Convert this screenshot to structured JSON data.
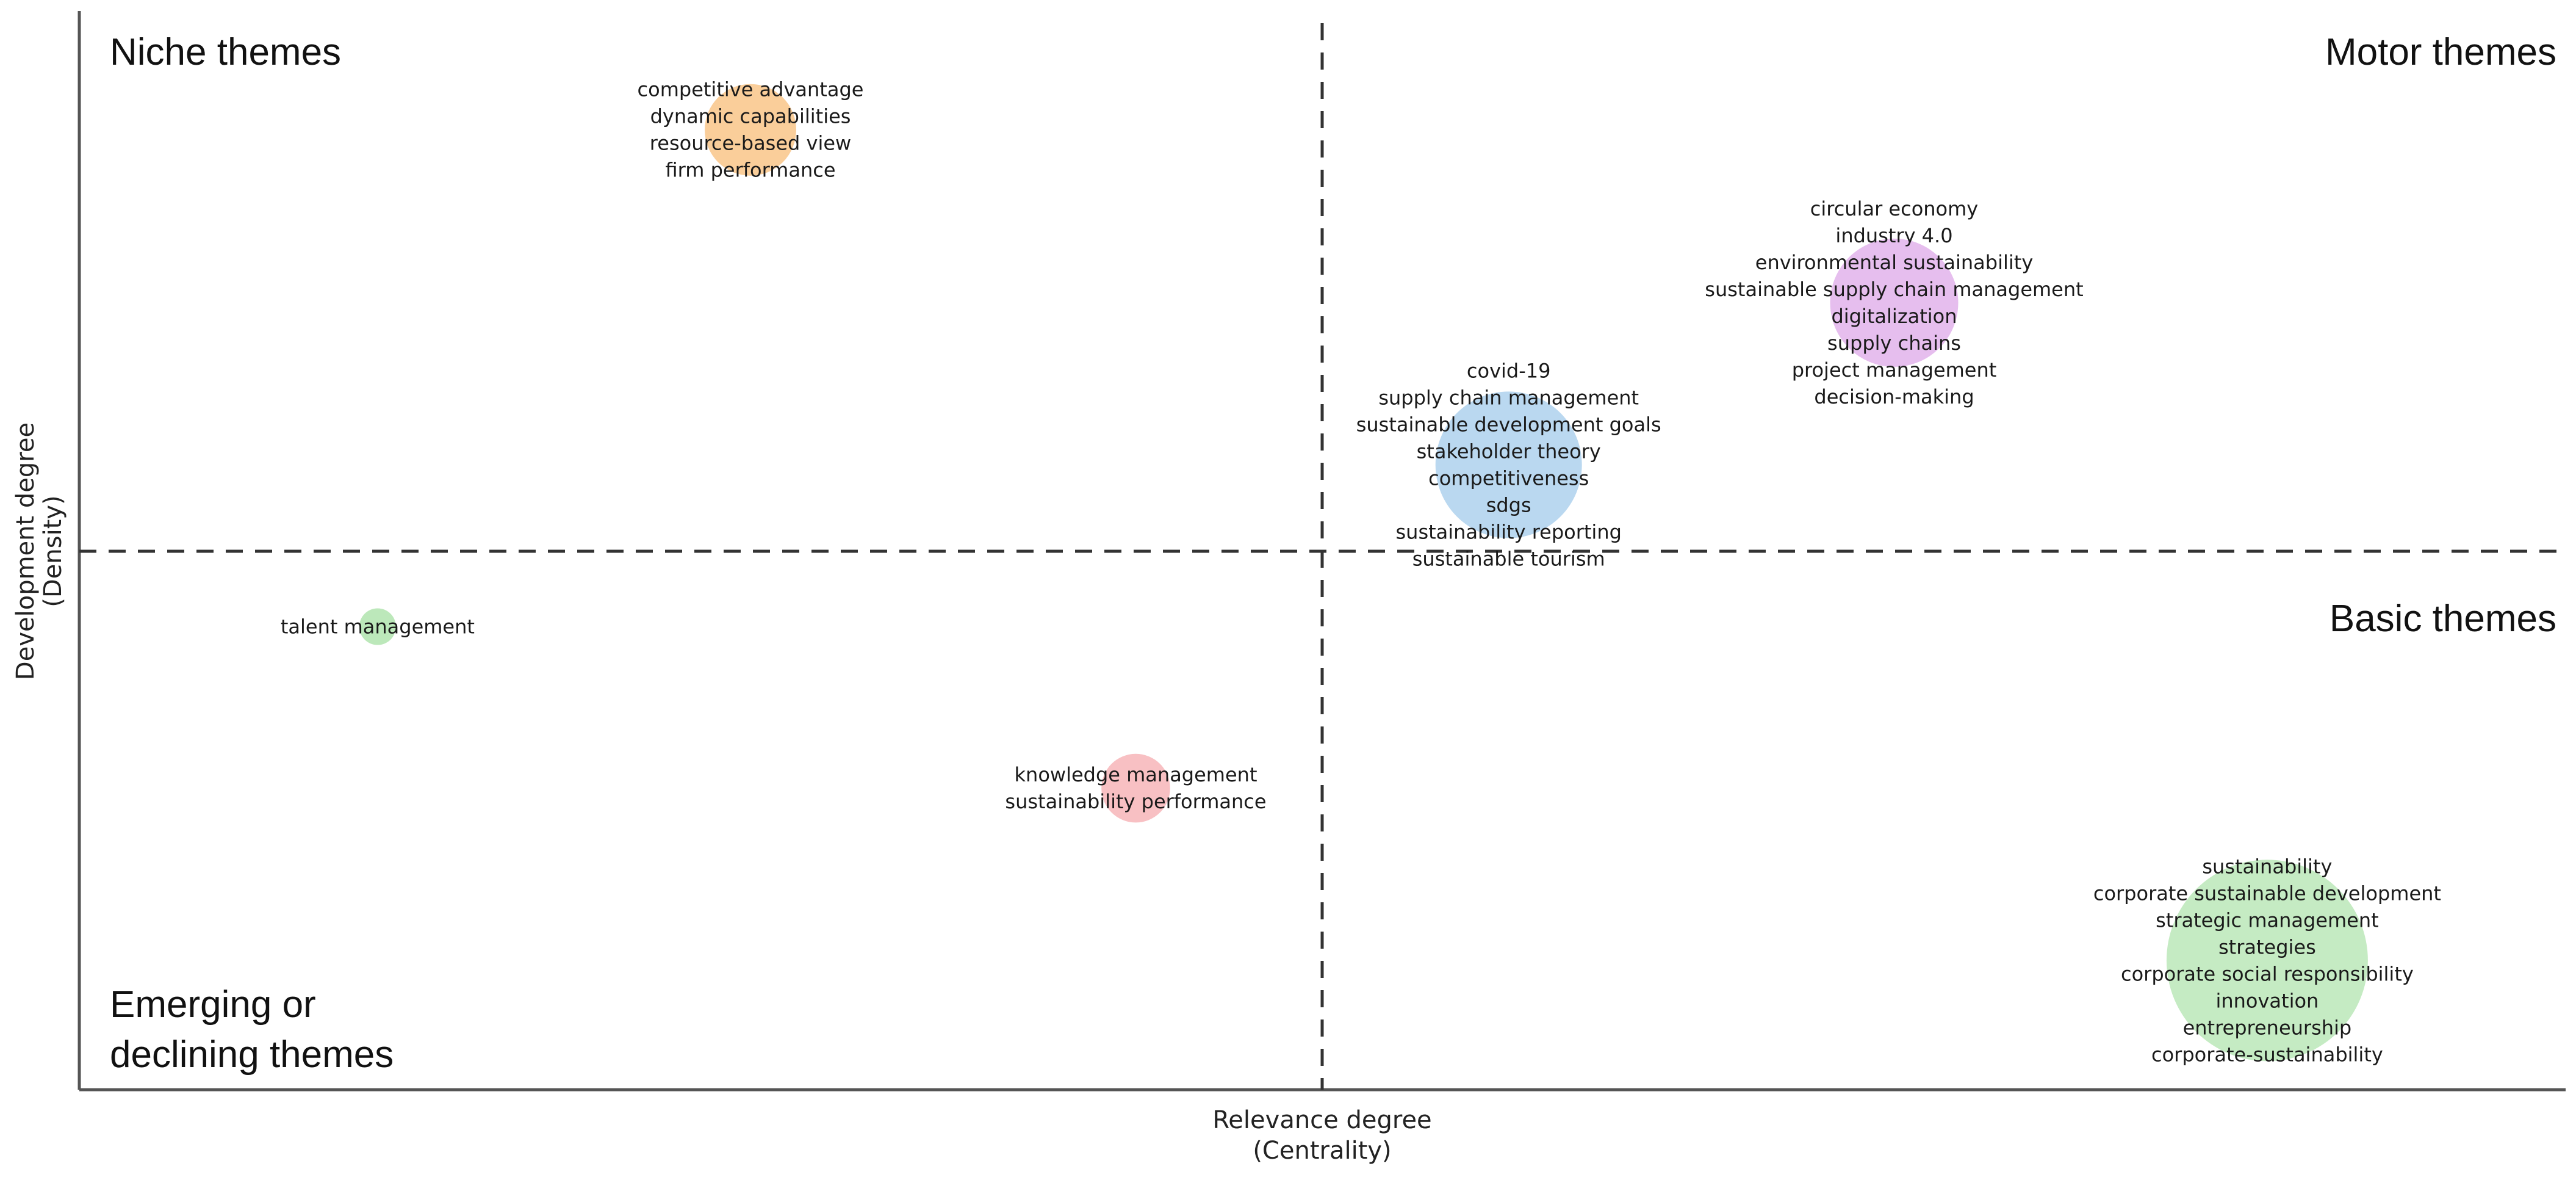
{
  "chart_data": {
    "type": "scatter",
    "title": "",
    "xlabel": [
      "Relevance degree",
      "(Centrality)"
    ],
    "ylabel": [
      "Development degree",
      "(Density)"
    ],
    "xlim": [
      0,
      1
    ],
    "ylim": [
      0,
      1
    ],
    "x_divider": 0.5,
    "y_divider": 0.5,
    "grid": false,
    "quadrant_labels": {
      "top_left": "Niche themes",
      "top_right": "Motor themes",
      "bottom_right": "Basic themes",
      "bottom_left": [
        "Emerging or",
        "declining themes"
      ]
    },
    "clusters": [
      {
        "name": "competitive advantage",
        "x": 0.27,
        "y": 0.89,
        "size": 1.0,
        "color": "#f9c98f",
        "terms": [
          "competitive advantage",
          "dynamic capabilities",
          "resource-based view",
          "firm performance"
        ]
      },
      {
        "name": "circular economy",
        "x": 0.73,
        "y": 0.73,
        "size": 1.4,
        "color": "#e3b7ec",
        "terms": [
          "circular economy",
          "industry 4.0",
          "environmental sustainability",
          "sustainable supply chain management",
          "digitalization",
          "supply chains",
          "project management",
          "decision-making"
        ]
      },
      {
        "name": "covid-19",
        "x": 0.575,
        "y": 0.58,
        "size": 1.6,
        "color": "#b3d4ee",
        "terms": [
          "covid-19",
          "supply chain management",
          "sustainable development goals",
          "stakeholder theory",
          "competitiveness",
          "sdgs",
          "sustainability reporting",
          "sustainable tourism"
        ]
      },
      {
        "name": "talent management",
        "x": 0.12,
        "y": 0.43,
        "size": 0.4,
        "color": "#b5e6b3",
        "terms": [
          "talent management"
        ]
      },
      {
        "name": "knowledge management",
        "x": 0.425,
        "y": 0.28,
        "size": 0.75,
        "color": "#f7b9bd",
        "terms": [
          "knowledge management",
          "sustainability performance"
        ]
      },
      {
        "name": "sustainability",
        "x": 0.88,
        "y": 0.12,
        "size": 2.2,
        "color": "#bfe9bd",
        "terms": [
          "sustainability",
          "corporate sustainable development",
          "strategic management",
          "strategies",
          "corporate social responsibility",
          "innovation",
          "entrepreneurship",
          "corporate-sustainability"
        ]
      }
    ]
  }
}
